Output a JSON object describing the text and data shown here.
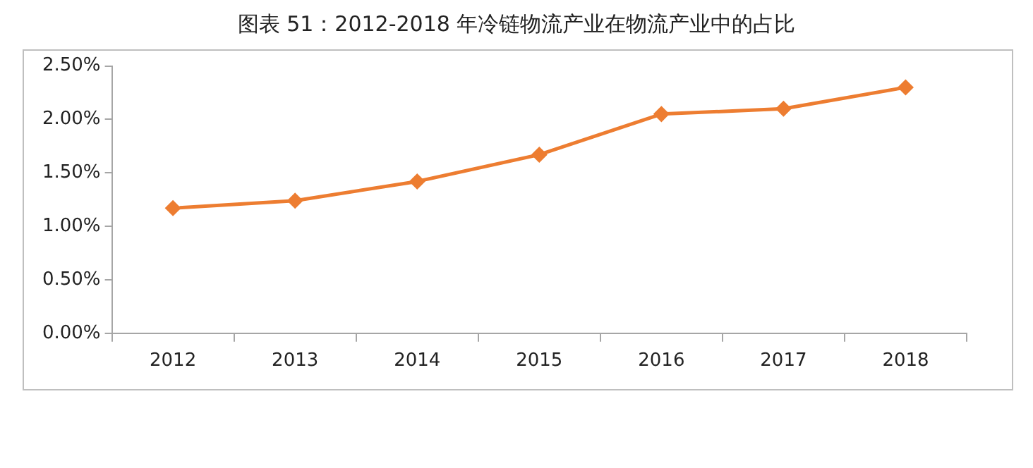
{
  "chart_data": {
    "type": "line",
    "title": "图表 51：2012-2018 年冷链物流产业在物流产业中的占比",
    "categories": [
      "2012",
      "2013",
      "2014",
      "2015",
      "2016",
      "2017",
      "2018"
    ],
    "series": [
      {
        "color": "#ed7d31",
        "values": [
          1.17,
          1.24,
          1.42,
          1.67,
          2.05,
          2.1,
          2.3
        ]
      }
    ],
    "ylim": [
      0,
      2.5
    ],
    "yticks": [
      {
        "value": 0,
        "label": "0.00%"
      },
      {
        "value": 0.5,
        "label": "0.50%"
      },
      {
        "value": 1,
        "label": "1.00%"
      },
      {
        "value": 1.5,
        "label": "1.50%"
      },
      {
        "value": 2,
        "label": "2.00%"
      },
      {
        "value": 2.5,
        "label": "2.50%"
      }
    ],
    "grid": false,
    "legend": false,
    "marker": "diamond",
    "line_style": "solid"
  }
}
